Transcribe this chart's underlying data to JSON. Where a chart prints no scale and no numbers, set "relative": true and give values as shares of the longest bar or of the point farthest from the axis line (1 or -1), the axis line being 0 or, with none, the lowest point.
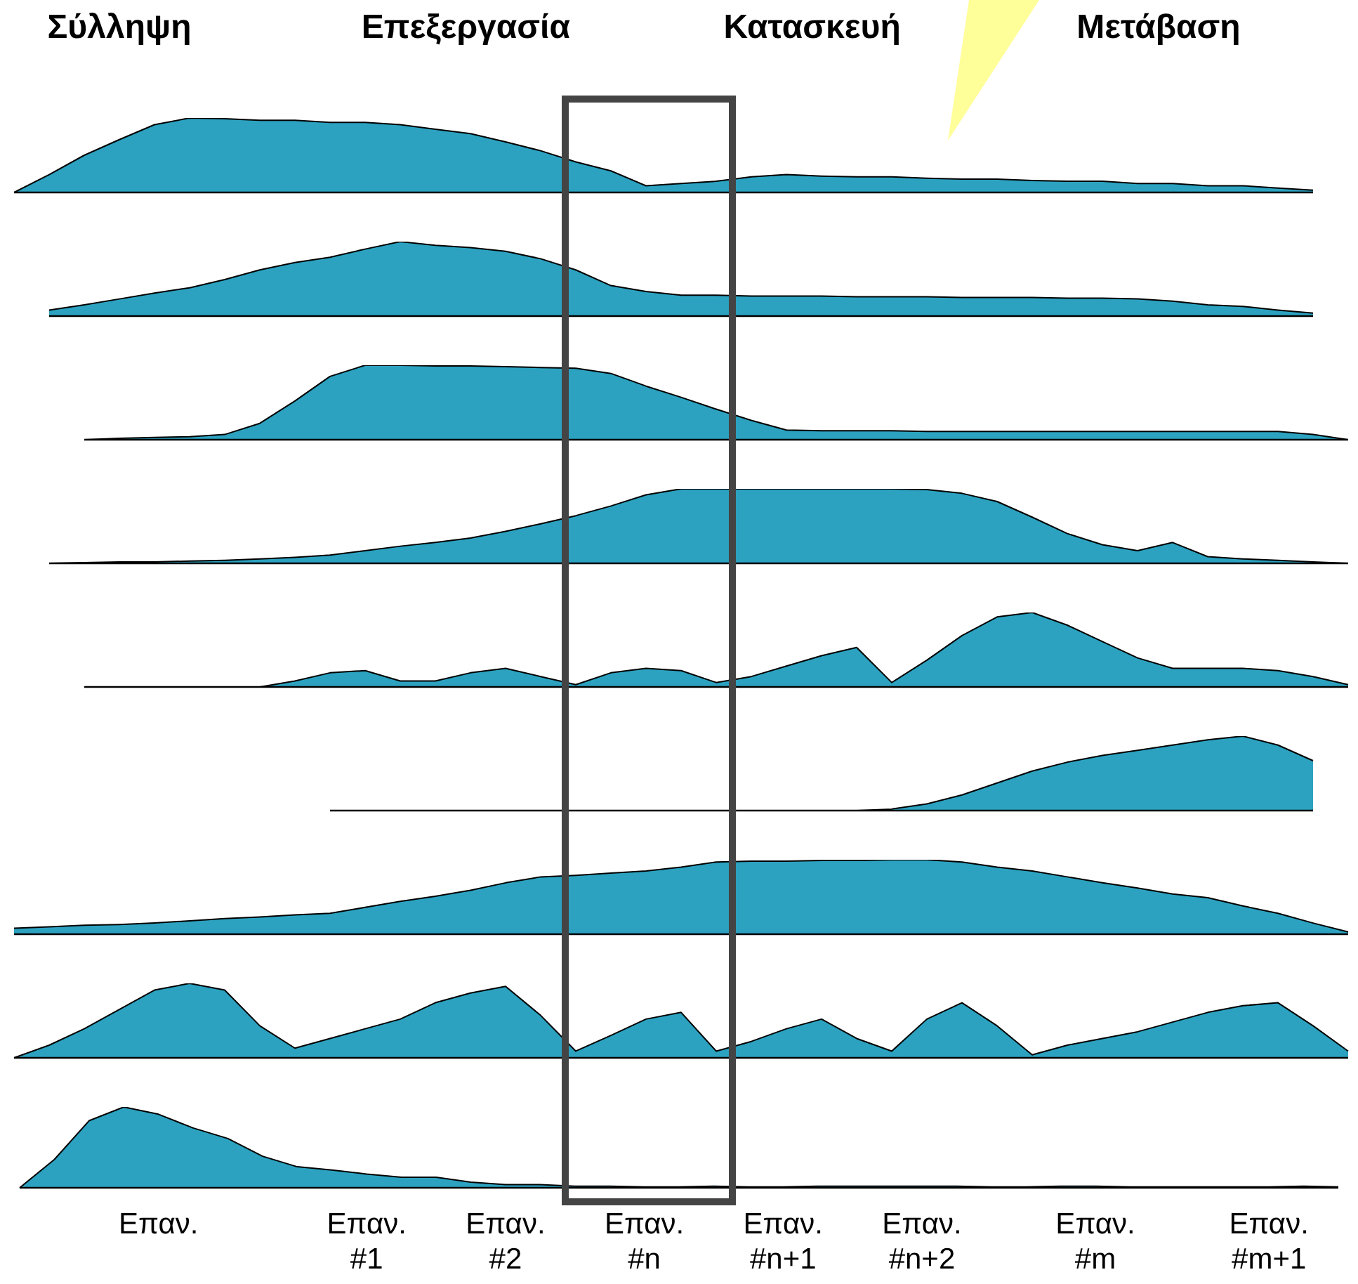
{
  "chart_data": [
    {
      "type": "area",
      "relative": true,
      "color": "#2ca2c0",
      "tick_labels": false,
      "annotations": [
        "Σύλληψη",
        "Επεξεργασία",
        "Κατασκευή",
        "Μετάβαση"
      ],
      "categories": [
        null,
        null,
        null,
        null,
        null,
        null,
        null,
        null,
        null,
        null,
        null,
        null,
        null,
        null,
        null,
        null,
        null,
        null,
        null,
        null,
        null,
        null,
        null,
        null,
        null,
        null,
        null,
        null,
        null,
        null,
        null,
        null,
        null,
        null,
        null,
        null,
        null,
        null,
        null
      ],
      "values": [
        0,
        0.24,
        0.5,
        0.71,
        0.91,
        1,
        0.99,
        0.97,
        0.97,
        0.94,
        0.94,
        0.91,
        0.85,
        0.79,
        0.68,
        0.56,
        0.41,
        0.29,
        0.09,
        0.12,
        0.15,
        0.21,
        0.24,
        0.22,
        0.21,
        0.21,
        0.19,
        0.18,
        0.18,
        0.16,
        0.15,
        0.15,
        0.12,
        0.12,
        0.09,
        0.09,
        0.06,
        0.03,
        null
      ]
    },
    {
      "type": "area",
      "relative": true,
      "color": "#2ca2c0",
      "tick_labels": false,
      "categories": [
        null,
        null,
        null,
        null,
        null,
        null,
        null,
        null,
        null,
        null,
        null,
        null,
        null,
        null,
        null,
        null,
        null,
        null,
        null,
        null,
        null,
        null,
        null,
        null,
        null,
        null,
        null,
        null,
        null,
        null,
        null,
        null,
        null,
        null,
        null,
        null,
        null,
        null,
        null
      ],
      "values": [
        null,
        0.08,
        0.15,
        0.23,
        0.31,
        0.38,
        0.49,
        0.62,
        0.72,
        0.79,
        0.9,
        1,
        0.95,
        0.92,
        0.87,
        0.77,
        0.62,
        0.41,
        0.33,
        0.28,
        0.28,
        0.27,
        0.27,
        0.27,
        0.26,
        0.26,
        0.26,
        0.25,
        0.25,
        0.25,
        0.24,
        0.24,
        0.23,
        0.2,
        0.15,
        0.13,
        0.08,
        0.04,
        null
      ]
    },
    {
      "type": "area",
      "relative": true,
      "color": "#2ca2c0",
      "tick_labels": false,
      "categories": [
        null,
        null,
        null,
        null,
        null,
        null,
        null,
        null,
        null,
        null,
        null,
        null,
        null,
        null,
        null,
        null,
        null,
        null,
        null,
        null,
        null,
        null,
        null,
        null,
        null,
        null,
        null,
        null,
        null,
        null,
        null,
        null,
        null,
        null,
        null,
        null,
        null,
        null,
        null
      ],
      "values": [
        null,
        null,
        0,
        0.02,
        0.03,
        0.04,
        0.07,
        0.22,
        0.52,
        0.85,
        1,
        1,
        0.99,
        0.99,
        0.98,
        0.97,
        0.96,
        0.89,
        0.72,
        0.57,
        0.41,
        0.26,
        0.13,
        0.12,
        0.12,
        0.12,
        0.11,
        0.11,
        0.11,
        0.11,
        0.11,
        0.11,
        0.11,
        0.11,
        0.11,
        0.11,
        0.11,
        0.07,
        0
      ]
    },
    {
      "type": "area",
      "relative": true,
      "color": "#2ca2c0",
      "tick_labels": false,
      "categories": [
        null,
        null,
        null,
        null,
        null,
        null,
        null,
        null,
        null,
        null,
        null,
        null,
        null,
        null,
        null,
        null,
        null,
        null,
        null,
        null,
        null,
        null,
        null,
        null,
        null,
        null,
        null,
        null,
        null,
        null,
        null,
        null,
        null,
        null,
        null,
        null,
        null,
        null,
        null
      ],
      "values": [
        null,
        0,
        0.01,
        0.02,
        0.02,
        0.03,
        0.04,
        0.06,
        0.08,
        0.11,
        0.17,
        0.23,
        0.28,
        0.34,
        0.43,
        0.53,
        0.64,
        0.77,
        0.92,
        1,
        1,
        1,
        1,
        1,
        1,
        1,
        0.99,
        0.94,
        0.83,
        0.62,
        0.4,
        0.25,
        0.17,
        0.28,
        0.09,
        0.06,
        0.04,
        0.02,
        0
      ]
    },
    {
      "type": "area",
      "relative": true,
      "color": "#2ca2c0",
      "tick_labels": false,
      "categories": [
        null,
        null,
        null,
        null,
        null,
        null,
        null,
        null,
        null,
        null,
        null,
        null,
        null,
        null,
        null,
        null,
        null,
        null,
        null,
        null,
        null,
        null,
        null,
        null,
        null,
        null,
        null,
        null,
        null,
        null,
        null,
        null,
        null,
        null,
        null,
        null,
        null,
        null,
        null
      ],
      "values": [
        null,
        null,
        0,
        0,
        0,
        0,
        0,
        0,
        0.08,
        0.19,
        0.22,
        0.08,
        0.08,
        0.19,
        0.25,
        0.14,
        0.03,
        0.19,
        0.25,
        0.22,
        0.06,
        0.14,
        0.28,
        0.42,
        0.53,
        0.06,
        0.36,
        0.69,
        0.94,
        1,
        0.83,
        0.61,
        0.39,
        0.25,
        0.25,
        0.25,
        0.22,
        0.14,
        0.03
      ]
    },
    {
      "type": "area",
      "relative": true,
      "color": "#2ca2c0",
      "tick_labels": false,
      "categories": [
        null,
        null,
        null,
        null,
        null,
        null,
        null,
        null,
        null,
        null,
        null,
        null,
        null,
        null,
        null,
        null,
        null,
        null,
        null,
        null,
        null,
        null,
        null,
        null,
        null,
        null,
        null,
        null,
        null,
        null,
        null,
        null,
        null,
        null,
        null,
        null,
        null,
        null,
        null
      ],
      "values": [
        null,
        null,
        null,
        null,
        null,
        null,
        null,
        null,
        null,
        0,
        0,
        0,
        0,
        0,
        0,
        0,
        0,
        0,
        0,
        0,
        0,
        0,
        0,
        0,
        0,
        0.02,
        0.09,
        0.21,
        0.37,
        0.53,
        0.65,
        0.74,
        0.81,
        0.88,
        0.95,
        1,
        0.88,
        0.67,
        null
      ]
    },
    {
      "type": "area",
      "relative": true,
      "color": "#2ca2c0",
      "tick_labels": false,
      "categories": [
        null,
        null,
        null,
        null,
        null,
        null,
        null,
        null,
        null,
        null,
        null,
        null,
        null,
        null,
        null,
        null,
        null,
        null,
        null,
        null,
        null,
        null,
        null,
        null,
        null,
        null,
        null,
        null,
        null,
        null,
        null,
        null,
        null,
        null,
        null,
        null,
        null,
        null,
        null
      ],
      "values": [
        0.08,
        0.1,
        0.12,
        0.13,
        0.15,
        0.18,
        0.21,
        0.23,
        0.26,
        0.28,
        0.36,
        0.44,
        0.51,
        0.59,
        0.69,
        0.77,
        0.79,
        0.82,
        0.85,
        0.9,
        0.97,
        0.98,
        0.98,
        0.99,
        0.99,
        1,
        1,
        0.97,
        0.9,
        0.85,
        0.77,
        0.69,
        0.62,
        0.54,
        0.49,
        0.38,
        0.28,
        0.15,
        0.03
      ]
    },
    {
      "type": "area",
      "relative": true,
      "color": "#2ca2c0",
      "tick_labels": false,
      "categories": [
        null,
        null,
        null,
        null,
        null,
        null,
        null,
        null,
        null,
        null,
        null,
        null,
        null,
        null,
        null,
        null,
        null,
        null,
        null,
        null,
        null,
        null,
        null,
        null,
        null,
        null,
        null,
        null,
        null,
        null,
        null,
        null,
        null,
        null,
        null,
        null,
        null,
        null,
        null
      ],
      "values": [
        0,
        0.17,
        0.39,
        0.65,
        0.91,
        1,
        0.91,
        0.43,
        0.13,
        0.26,
        0.39,
        0.52,
        0.74,
        0.87,
        0.96,
        0.57,
        0.09,
        0.3,
        0.52,
        0.61,
        0.09,
        0.22,
        0.39,
        0.52,
        0.26,
        0.09,
        0.52,
        0.74,
        0.43,
        0.04,
        0.17,
        0.26,
        0.35,
        0.48,
        0.61,
        0.7,
        0.74,
        0.43,
        0.09
      ]
    },
    {
      "type": "area",
      "relative": true,
      "color": "#2ca2c0",
      "tick_labels": "x",
      "categories": [
        null,
        null,
        null,
        null,
        "Επαν.",
        null,
        null,
        null,
        null,
        null,
        "Επαν.\n#1",
        null,
        null,
        null,
        "Επαν.\n#2",
        null,
        null,
        null,
        "Επαν.\n#n",
        null,
        null,
        null,
        "Επαν.\n#n+1",
        null,
        null,
        null,
        "Επαν.\n#n+2",
        null,
        null,
        null,
        null,
        "Επαν.\n#m",
        null,
        null,
        null,
        null,
        "Επαν.\n#m+1",
        null,
        null
      ],
      "values": [
        0,
        0.35,
        0.83,
        1,
        0.91,
        0.74,
        0.61,
        0.39,
        0.26,
        0.22,
        0.17,
        0.13,
        0.13,
        0.07,
        0.04,
        0.04,
        0.02,
        0.02,
        0.01,
        0.01,
        0.02,
        0.01,
        0.01,
        0.02,
        0.02,
        0.02,
        0.02,
        0.02,
        0.01,
        0.01,
        0.02,
        0.02,
        0.01,
        0.01,
        0.01,
        0.01,
        0.01,
        0.02,
        0.01
      ]
    }
  ]
}
